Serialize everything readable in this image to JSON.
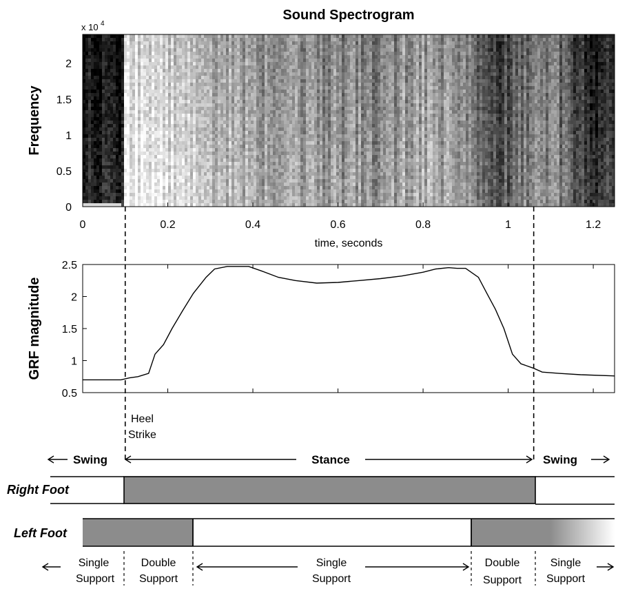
{
  "chart_data": [
    {
      "type": "heatmap",
      "title": "Sound Spectrogram",
      "xlabel": "time, seconds",
      "ylabel": "Frequency",
      "y_multiplier": "x 10",
      "y_multiplier_exp": "4",
      "xlim": [
        0,
        1.25
      ],
      "ylim": [
        0,
        2.4
      ],
      "xticks": [
        0,
        0.2,
        0.4,
        0.6,
        0.8,
        1,
        1.2
      ],
      "xtick_labels": [
        "0",
        "0.2",
        "0.4",
        "0.6",
        "0.8",
        "1",
        "1.2"
      ],
      "yticks": [
        0,
        0.5,
        1,
        1.5,
        2
      ],
      "ytick_labels": [
        "0",
        "0.5",
        "1",
        "1.5",
        "2"
      ],
      "colormap": "grayscale",
      "column_profile": {
        "t": [
          0,
          0.03,
          0.07,
          0.095,
          0.1,
          0.15,
          0.2,
          0.3,
          0.4,
          0.5,
          0.6,
          0.7,
          0.8,
          0.9,
          0.95,
          1.0,
          1.05,
          1.08,
          1.1,
          1.15,
          1.2,
          1.25
        ],
        "darkness": [
          0.92,
          0.9,
          0.88,
          0.9,
          0.12,
          0.1,
          0.2,
          0.3,
          0.38,
          0.42,
          0.45,
          0.45,
          0.35,
          0.5,
          0.6,
          0.7,
          0.55,
          0.4,
          0.5,
          0.65,
          0.8,
          0.82
        ]
      }
    },
    {
      "type": "line",
      "xlabel": "",
      "ylabel": "GRF magnitude",
      "xlim": [
        0,
        1.25
      ],
      "ylim": [
        0.5,
        2.5
      ],
      "yticks": [
        0.5,
        1,
        1.5,
        2,
        2.5
      ],
      "ytick_labels": [
        "0.5",
        "1",
        "1.5",
        "2",
        "2.5"
      ],
      "series": [
        {
          "x": [
            0,
            0.05,
            0.09,
            0.11,
            0.13,
            0.155,
            0.17,
            0.19,
            0.21,
            0.235,
            0.26,
            0.29,
            0.31,
            0.34,
            0.37,
            0.39,
            0.42,
            0.46,
            0.5,
            0.55,
            0.6,
            0.65,
            0.7,
            0.75,
            0.8,
            0.83,
            0.86,
            0.88,
            0.9,
            0.93,
            0.95,
            0.97,
            0.99,
            1.01,
            1.03,
            1.06,
            1.08,
            1.12,
            1.17,
            1.25
          ],
          "y": [
            0.7,
            0.7,
            0.7,
            0.73,
            0.75,
            0.8,
            1.1,
            1.25,
            1.5,
            1.78,
            2.05,
            2.3,
            2.43,
            2.47,
            2.47,
            2.47,
            2.4,
            2.3,
            2.25,
            2.21,
            2.22,
            2.25,
            2.28,
            2.32,
            2.38,
            2.43,
            2.45,
            2.44,
            2.44,
            2.3,
            2.05,
            1.8,
            1.5,
            1.1,
            0.95,
            0.88,
            0.82,
            0.8,
            0.78,
            0.76
          ]
        }
      ]
    }
  ],
  "annotations": {
    "heel_strike_line1": "Heel",
    "heel_strike_line2": "Strike",
    "swing_left": "Swing",
    "stance": "Stance",
    "swing_right": "Swing",
    "right_foot": "Right Foot",
    "left_foot": "Left Foot",
    "support_1_line1": "Single",
    "support_1_line2": "Support",
    "support_2_line1": "Double",
    "support_2_line2": "Support",
    "support_3_line1": "Single",
    "support_3_line2": "Support",
    "support_4_line1": "Double",
    "support_4_line2": "Support",
    "support_5_line1": "Single",
    "support_5_line2": "Support"
  },
  "gait_events": {
    "heel_strike": 0.1,
    "right_toe_off_stance_end": 1.06,
    "left_toe_off": 0.26,
    "left_heel_strike": 0.91
  },
  "colors": {
    "bar_fill": "#8c8c8c",
    "axis": "#000000"
  }
}
